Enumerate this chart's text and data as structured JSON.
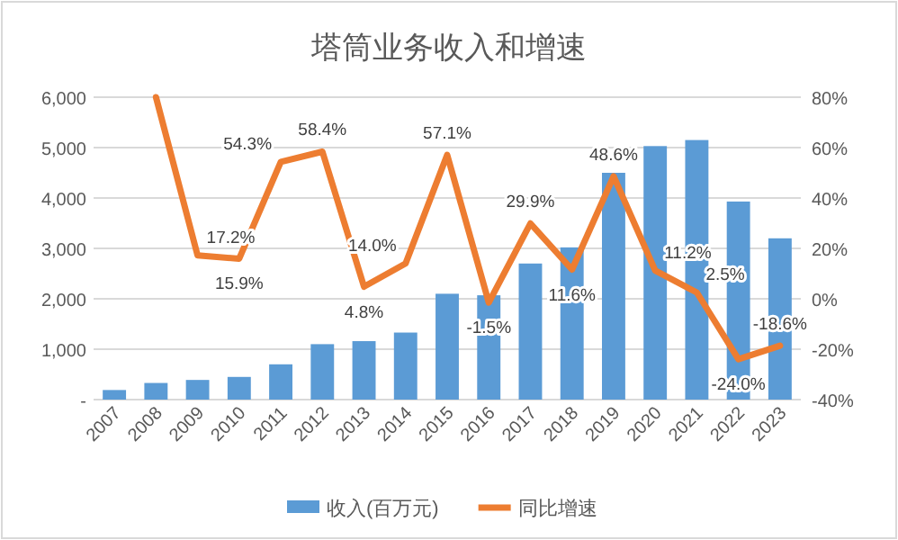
{
  "chart_data": {
    "type": "bar",
    "title": "塔筒业务收入和增速",
    "categories": [
      "2007",
      "2008",
      "2009",
      "2010",
      "2011",
      "2012",
      "2013",
      "2014",
      "2015",
      "2016",
      "2017",
      "2018",
      "2019",
      "2020",
      "2021",
      "2022",
      "2023"
    ],
    "series": [
      {
        "name": "收入(百万元)",
        "type": "bar",
        "color": "#5b9bd5",
        "values": [
          190,
          330,
          390,
          450,
          700,
          1100,
          1160,
          1330,
          2100,
          2070,
          2700,
          3020,
          4500,
          5030,
          5150,
          3930,
          3200
        ]
      },
      {
        "name": "同比增速",
        "type": "line",
        "axis": "y2",
        "color": "#ed7d31",
        "values": [
          null,
          80,
          17.2,
          15.9,
          54.3,
          58.4,
          4.8,
          14.0,
          57.1,
          -1.5,
          29.9,
          11.6,
          48.6,
          11.2,
          2.5,
          -24.0,
          -18.6
        ],
        "value_labels": [
          null,
          null,
          "17.2%",
          "15.9%",
          "54.3%",
          "58.4%",
          "4.8%",
          "14.0%",
          "57.1%",
          "-1.5%",
          "29.9%",
          "11.6%",
          "48.6%",
          "11.2%",
          "2.5%",
          "-24.0%",
          "-18.6%"
        ]
      }
    ],
    "ylim": [
      0,
      6000
    ],
    "yticks": [
      {
        "value": 0,
        "label": "-"
      },
      {
        "value": 1000,
        "label": "1,000"
      },
      {
        "value": 2000,
        "label": "2,000"
      },
      {
        "value": 3000,
        "label": "3,000"
      },
      {
        "value": 4000,
        "label": "4,000"
      },
      {
        "value": 5000,
        "label": "5,000"
      },
      {
        "value": 6000,
        "label": "6,000"
      }
    ],
    "y2lim": [
      -40,
      80
    ],
    "y2ticks": [
      {
        "value": -40,
        "label": "-40%"
      },
      {
        "value": -20,
        "label": "-20%"
      },
      {
        "value": 0,
        "label": "0%"
      },
      {
        "value": 20,
        "label": "20%"
      },
      {
        "value": 40,
        "label": "40%"
      },
      {
        "value": 60,
        "label": "60%"
      },
      {
        "value": 80,
        "label": "80%"
      }
    ],
    "grid": "y",
    "legend": "bottom"
  }
}
